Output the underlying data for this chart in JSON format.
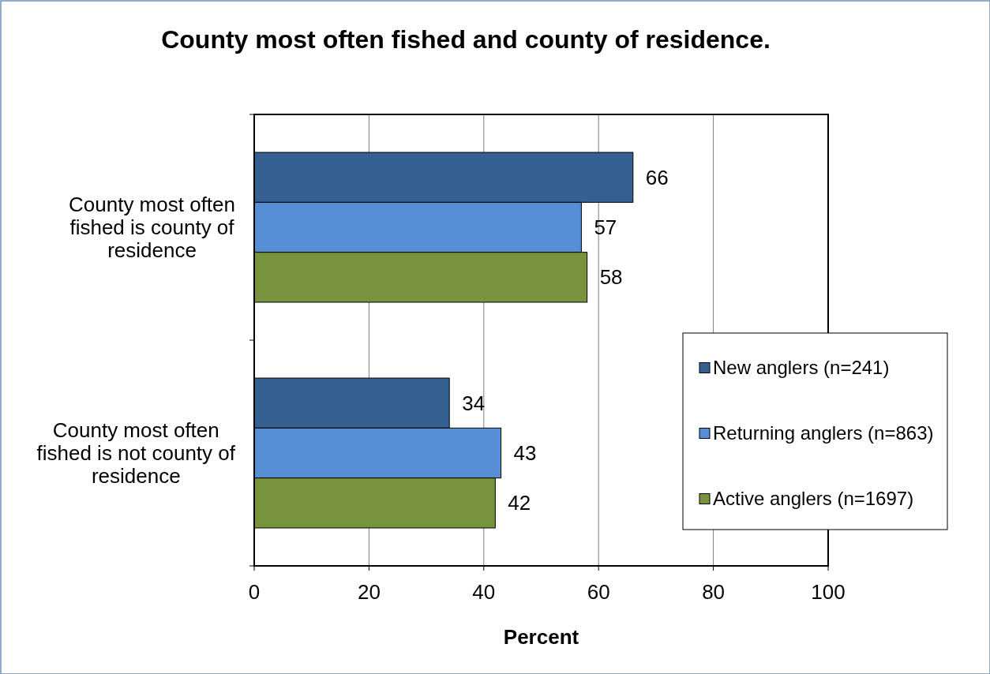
{
  "chart_data": {
    "type": "bar",
    "orientation": "horizontal",
    "title": "County most often fished and county of residence.",
    "xlabel": "Percent",
    "categories": [
      "County most often fished is county of residence",
      "County most often fished is not county of residence"
    ],
    "series": [
      {
        "name": "New anglers (n=241)",
        "color": "#376092",
        "values": [
          66,
          34
        ]
      },
      {
        "name": "Returning anglers (n=863)",
        "color": "#558ed5",
        "values": [
          57,
          43
        ]
      },
      {
        "name": "Active anglers (n=1697)",
        "color": "#77933c",
        "values": [
          58,
          42
        ]
      }
    ],
    "xlim": [
      0,
      100
    ],
    "xticks": [
      0,
      20,
      40,
      60,
      80,
      100
    ],
    "grid": "x",
    "legend": "right",
    "data_labels": true
  }
}
